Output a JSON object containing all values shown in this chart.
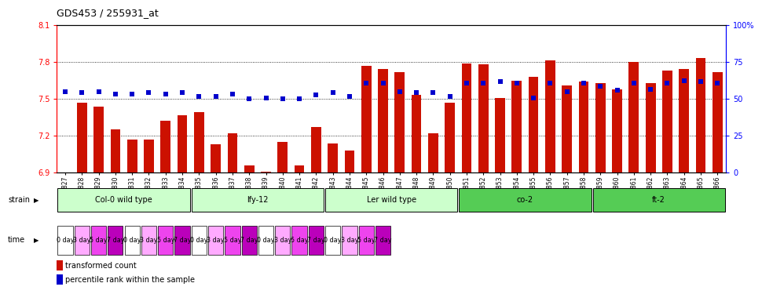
{
  "title": "GDS453 / 255931_at",
  "bar_values": [
    6.9,
    7.47,
    7.44,
    7.25,
    7.17,
    7.17,
    7.32,
    7.37,
    7.39,
    7.13,
    7.22,
    6.96,
    6.91,
    7.15,
    6.96,
    7.27,
    7.14,
    7.08,
    7.77,
    7.74,
    7.72,
    7.53,
    7.22,
    7.47,
    7.79,
    7.78,
    7.51,
    7.65,
    7.68,
    7.81,
    7.61,
    7.64,
    7.63,
    7.58,
    7.8,
    7.63,
    7.73,
    7.74,
    7.83,
    7.72
  ],
  "dot_values": [
    7.56,
    7.55,
    7.56,
    7.54,
    7.54,
    7.55,
    7.54,
    7.55,
    7.52,
    7.52,
    7.54,
    7.5,
    7.51,
    7.5,
    7.5,
    7.53,
    7.55,
    7.52,
    7.63,
    7.63,
    7.56,
    7.55,
    7.55,
    7.52,
    7.63,
    7.63,
    7.64,
    7.63,
    7.51,
    7.63,
    7.56,
    7.63,
    7.6,
    7.57,
    7.63,
    7.58,
    7.63,
    7.65,
    7.64,
    7.63
  ],
  "labels": [
    "GSM8827",
    "GSM8828",
    "GSM8829",
    "GSM8830",
    "GSM8831",
    "GSM8832",
    "GSM8833",
    "GSM8834",
    "GSM8835",
    "GSM8836",
    "GSM8837",
    "GSM8838",
    "GSM8839",
    "GSM8840",
    "GSM8841",
    "GSM8842",
    "GSM8843",
    "GSM8844",
    "GSM8845",
    "GSM8846",
    "GSM8847",
    "GSM8848",
    "GSM8849",
    "GSM8850",
    "GSM8851",
    "GSM8852",
    "GSM8853",
    "GSM8854",
    "GSM8855",
    "GSM8856",
    "GSM8857",
    "GSM8858",
    "GSM8859",
    "GSM8860",
    "GSM8861",
    "GSM8862",
    "GSM8863",
    "GSM8864",
    "GSM8865",
    "GSM8866"
  ],
  "strains": [
    {
      "label": "Col-0 wild type",
      "start": 0,
      "end": 8,
      "color": "#ccffcc"
    },
    {
      "label": "lfy-12",
      "start": 8,
      "end": 16,
      "color": "#ccffcc"
    },
    {
      "label": "Ler wild type",
      "start": 16,
      "end": 24,
      "color": "#ccffcc"
    },
    {
      "label": "co-2",
      "start": 24,
      "end": 32,
      "color": "#55cc55"
    },
    {
      "label": "ft-2",
      "start": 32,
      "end": 40,
      "color": "#55cc55"
    }
  ],
  "time_colors": [
    "#ffffff",
    "#ffaaff",
    "#ee44ee",
    "#bb00bb"
  ],
  "time_labels": [
    "0 day",
    "3 day",
    "5 day",
    "7 day"
  ],
  "ylim": [
    6.9,
    8.1
  ],
  "yticks": [
    6.9,
    7.2,
    7.5,
    7.8,
    8.1
  ],
  "dotted_lines": [
    7.8,
    7.5,
    7.2
  ],
  "bar_color": "#cc1100",
  "dot_color": "#0000cc",
  "right_axis_ticks": [
    0,
    25,
    50,
    75,
    100
  ],
  "right_axis_labels": [
    "0",
    "25",
    "50",
    "75",
    "100%"
  ]
}
